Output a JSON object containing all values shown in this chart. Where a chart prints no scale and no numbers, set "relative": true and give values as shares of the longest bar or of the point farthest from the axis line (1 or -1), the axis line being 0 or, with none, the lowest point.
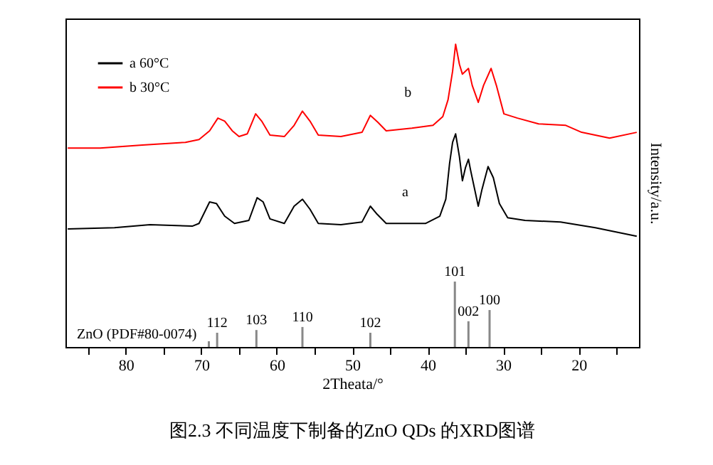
{
  "chart_data": {
    "type": "line",
    "title": "图2.3 不同温度下制备的ZnO QDs 的XRD图谱",
    "xlabel": "2Theata/°",
    "ylabel": "Intensity/a.u.",
    "relative": true,
    "legend": "top left",
    "xlim": [
      88,
      12
    ],
    "xticks": [
      {
        "value": 85,
        "label": null
      },
      80,
      {
        "value": 75,
        "label": null
      },
      70,
      {
        "value": 65,
        "label": null
      },
      60,
      {
        "value": 55,
        "label": null
      },
      50,
      {
        "value": 45,
        "label": null
      },
      40,
      {
        "value": 35,
        "label": null
      },
      30,
      {
        "value": 25,
        "label": null
      },
      20,
      {
        "value": 15,
        "label": null
      }
    ],
    "series": [
      {
        "name": "a 60°C",
        "color": "#000000",
        "x": [
          87.7,
          81.5,
          76.8,
          71.2,
          70.3,
          68.9,
          68.0,
          66.9,
          65.6,
          63.7,
          62.6,
          61.8,
          60.9,
          59.0,
          57.7,
          56.6,
          55.6,
          54.5,
          51.5,
          48.7,
          47.6,
          46.8,
          45.5,
          40.3,
          38.4,
          37.6,
          37.1,
          36.7,
          36.3,
          35.8,
          35.4,
          35.0,
          34.6,
          34.3,
          33.3,
          32.8,
          32.0,
          31.3,
          30.5,
          29.4,
          27.1,
          22.4,
          17.8,
          12.3
        ],
        "values": [
          0.39,
          0.394,
          0.404,
          0.399,
          0.408,
          0.479,
          0.474,
          0.432,
          0.408,
          0.418,
          0.493,
          0.479,
          0.423,
          0.408,
          0.465,
          0.488,
          0.455,
          0.408,
          0.404,
          0.413,
          0.465,
          0.441,
          0.408,
          0.408,
          0.432,
          0.488,
          0.606,
          0.676,
          0.704,
          0.629,
          0.549,
          0.592,
          0.62,
          0.582,
          0.465,
          0.521,
          0.596,
          0.559,
          0.474,
          0.427,
          0.418,
          0.413,
          0.394,
          0.366
        ]
      },
      {
        "name": "b 30°C",
        "color": "#ff0000",
        "x": [
          87.7,
          83.4,
          77.8,
          72.1,
          70.3,
          68.9,
          67.8,
          66.9,
          65.9,
          65.0,
          63.9,
          62.8,
          62.0,
          60.9,
          59.0,
          57.7,
          56.6,
          55.6,
          54.5,
          51.5,
          48.7,
          47.6,
          46.6,
          45.5,
          42.1,
          39.3,
          38.0,
          37.3,
          36.7,
          36.3,
          35.8,
          35.4,
          34.6,
          34.1,
          33.3,
          32.6,
          31.6,
          30.9,
          29.9,
          28.1,
          25.3,
          21.7,
          19.6,
          15.9,
          12.3
        ],
        "values": [
          0.657,
          0.657,
          0.667,
          0.676,
          0.685,
          0.714,
          0.756,
          0.746,
          0.714,
          0.695,
          0.704,
          0.77,
          0.746,
          0.7,
          0.695,
          0.732,
          0.779,
          0.746,
          0.7,
          0.695,
          0.709,
          0.765,
          0.742,
          0.714,
          0.723,
          0.732,
          0.761,
          0.817,
          0.911,
          1.0,
          0.934,
          0.901,
          0.92,
          0.864,
          0.808,
          0.864,
          0.92,
          0.864,
          0.77,
          0.756,
          0.737,
          0.732,
          0.709,
          0.69,
          0.709
        ]
      },
      {
        "type": "bar",
        "color": "#888888",
        "x": [
          31.8,
          34.6,
          36.4,
          47.6,
          56.6,
          62.7,
          67.9,
          69.0
        ],
        "values": [
          0.122,
          0.085,
          0.216,
          0.047,
          0.066,
          0.056,
          0.047,
          0.019
        ]
      }
    ],
    "annotations": [
      {
        "text": "a",
        "x": 38.4,
        "y": 0.432
      },
      {
        "text": "b",
        "x": 38.0,
        "y": 0.761
      },
      {
        "text": "100",
        "x": 31.8,
        "y": 0.122
      },
      {
        "text": "002",
        "x": 34.6,
        "y": 0.085
      },
      {
        "text": "101",
        "x": 36.4,
        "y": 0.216
      },
      {
        "text": "102",
        "x": 47.6,
        "y": 0.047
      },
      {
        "text": "110",
        "x": 56.6,
        "y": 0.066
      },
      {
        "text": "103",
        "x": 62.7,
        "y": 0.056
      },
      {
        "text": "112",
        "x": 67.9,
        "y": 0.047
      },
      "ZnO (PDF#80-0074)"
    ]
  }
}
